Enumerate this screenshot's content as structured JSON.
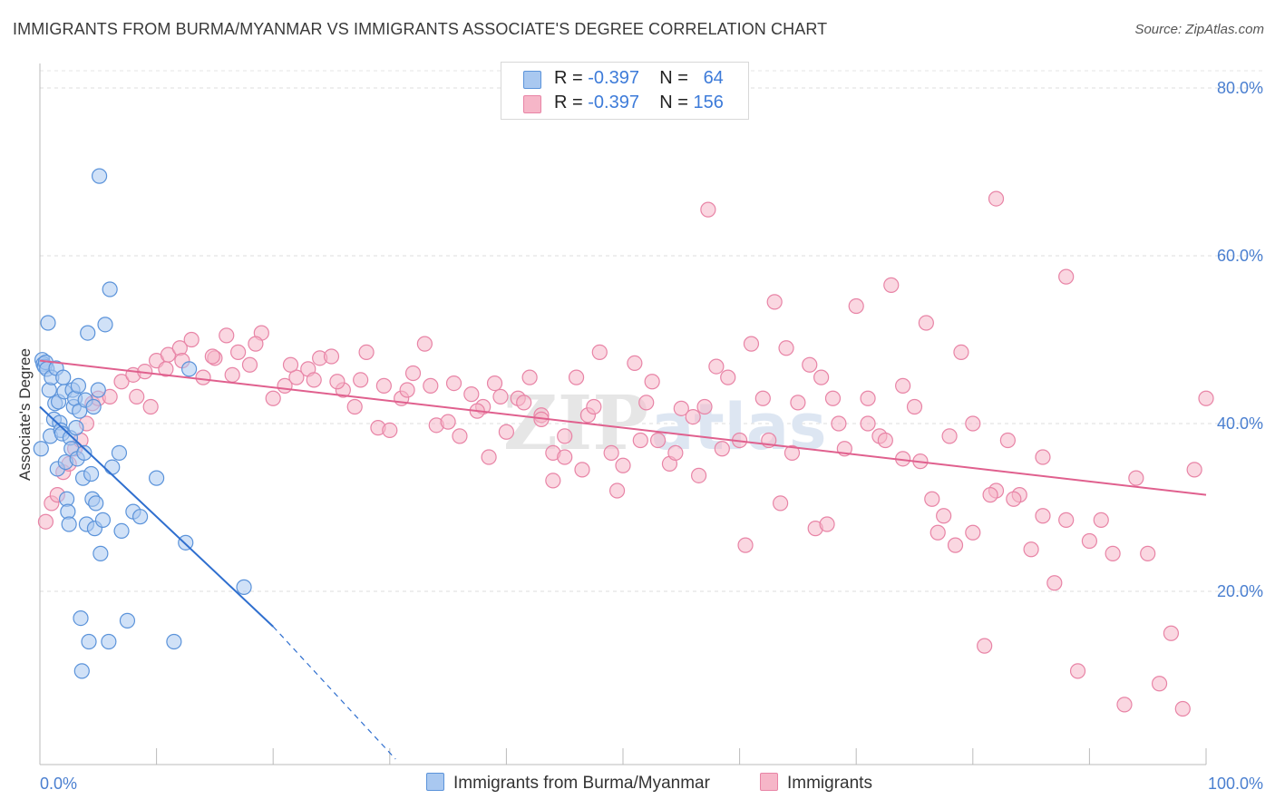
{
  "title": "IMMIGRANTS FROM BURMA/MYANMAR VS IMMIGRANTS ASSOCIATE'S DEGREE CORRELATION CHART",
  "source": "Source: ZipAtlas.com",
  "legend": {
    "r_label": "R =",
    "n_label": "N =",
    "rows": [
      {
        "r": "-0.397",
        "n": "64",
        "color": "#a9c8f0"
      },
      {
        "r": "-0.397",
        "n": "156",
        "color": "#f6b6c8"
      }
    ]
  },
  "bottom_legend": {
    "series1": "Immigrants from Burma/Myanmar",
    "series2": "Immigrants"
  },
  "colors": {
    "blue_fill": "#a9c8f0",
    "blue_stroke": "#5b93da",
    "blue_line": "#2f6fcf",
    "pink_fill": "#f6b6c8",
    "pink_stroke": "#e884a6",
    "pink_line": "#e0608e",
    "tick": "#4a7fd0"
  },
  "chart_data": {
    "type": "scatter",
    "title": "IMMIGRANTS FROM BURMA/MYANMAR VS IMMIGRANTS ASSOCIATE'S DEGREE CORRELATION CHART",
    "xlabel": "",
    "ylabel": "Associate's Degree",
    "xlim": [
      0,
      100
    ],
    "ylim": [
      0,
      82
    ],
    "x_ticks": [
      "0.0%",
      "100.0%"
    ],
    "y_ticks": [
      {
        "value": 20,
        "label": "20.0%"
      },
      {
        "value": 40,
        "label": "40.0%"
      },
      {
        "value": 60,
        "label": "60.0%"
      },
      {
        "value": 80,
        "label": "80.0%"
      }
    ],
    "grid": "horizontal dashed",
    "watermark": "ZIPatlas",
    "series": [
      {
        "name": "Immigrants from Burma/Myanmar",
        "color": "#a9c8f0",
        "trend": {
          "x1": 0.0,
          "y1": 42.0,
          "x2": 20.0,
          "y2": 15.8,
          "dashed_to_x": 30.5,
          "dashed_to_y": 0.0
        },
        "points": [
          [
            0.2,
            47.6
          ],
          [
            0.3,
            47.1
          ],
          [
            0.4,
            46.8
          ],
          [
            0.5,
            47.3
          ],
          [
            0.6,
            46.5
          ],
          [
            0.7,
            52.0
          ],
          [
            0.8,
            44.0
          ],
          [
            0.9,
            38.5
          ],
          [
            1.0,
            45.5
          ],
          [
            1.2,
            40.5
          ],
          [
            1.3,
            42.4
          ],
          [
            1.4,
            46.6
          ],
          [
            1.5,
            34.6
          ],
          [
            1.6,
            42.6
          ],
          [
            1.7,
            40.1
          ],
          [
            1.8,
            39.2
          ],
          [
            1.9,
            38.8
          ],
          [
            2.0,
            45.5
          ],
          [
            2.1,
            43.8
          ],
          [
            2.2,
            35.4
          ],
          [
            2.3,
            31.0
          ],
          [
            2.4,
            29.5
          ],
          [
            2.5,
            28.0
          ],
          [
            2.6,
            38.3
          ],
          [
            2.7,
            37.0
          ],
          [
            2.8,
            44.0
          ],
          [
            2.9,
            42.0
          ],
          [
            3.0,
            43.0
          ],
          [
            3.1,
            39.5
          ],
          [
            3.2,
            35.8
          ],
          [
            3.3,
            44.5
          ],
          [
            3.4,
            41.5
          ],
          [
            3.5,
            16.8
          ],
          [
            3.6,
            10.5
          ],
          [
            3.7,
            33.5
          ],
          [
            3.8,
            36.5
          ],
          [
            3.9,
            42.8
          ],
          [
            4.0,
            28.0
          ],
          [
            4.1,
            50.8
          ],
          [
            4.2,
            14.0
          ],
          [
            4.4,
            34.0
          ],
          [
            4.5,
            31.0
          ],
          [
            4.6,
            42.0
          ],
          [
            4.7,
            27.5
          ],
          [
            4.8,
            30.5
          ],
          [
            5.0,
            44.0
          ],
          [
            5.1,
            69.5
          ],
          [
            5.2,
            24.5
          ],
          [
            5.4,
            28.5
          ],
          [
            5.6,
            51.8
          ],
          [
            5.9,
            14.0
          ],
          [
            6.0,
            56.0
          ],
          [
            6.2,
            34.8
          ],
          [
            6.8,
            36.5
          ],
          [
            7.5,
            16.5
          ],
          [
            8.0,
            29.5
          ],
          [
            7.0,
            27.2
          ],
          [
            8.6,
            28.9
          ],
          [
            10.0,
            33.5
          ],
          [
            11.5,
            14.0
          ],
          [
            12.5,
            25.8
          ],
          [
            12.8,
            46.5
          ],
          [
            17.5,
            20.5
          ],
          [
            0.1,
            37.0
          ]
        ]
      },
      {
        "name": "Immigrants",
        "color": "#f6b6c8",
        "trend": {
          "x1": 0.0,
          "y1": 47.5,
          "x2": 100.0,
          "y2": 31.5
        },
        "points": [
          [
            0.5,
            28.3
          ],
          [
            1.0,
            30.5
          ],
          [
            1.5,
            31.5
          ],
          [
            2.0,
            34.2
          ],
          [
            2.5,
            35.2
          ],
          [
            3.0,
            37.0
          ],
          [
            3.5,
            38.0
          ],
          [
            4.0,
            40.0
          ],
          [
            4.5,
            42.4
          ],
          [
            5.0,
            43.0
          ],
          [
            6.0,
            43.2
          ],
          [
            7.0,
            45.0
          ],
          [
            8.0,
            45.8
          ],
          [
            9.0,
            46.2
          ],
          [
            10.0,
            47.5
          ],
          [
            11.0,
            48.2
          ],
          [
            12.0,
            49.0
          ],
          [
            13.0,
            50.0
          ],
          [
            14.0,
            45.5
          ],
          [
            15.0,
            47.8
          ],
          [
            16.0,
            50.5
          ],
          [
            17.0,
            48.5
          ],
          [
            18.0,
            47.0
          ],
          [
            19.0,
            50.8
          ],
          [
            20.0,
            43.0
          ],
          [
            21.0,
            44.5
          ],
          [
            22.0,
            45.5
          ],
          [
            23.0,
            46.5
          ],
          [
            24.0,
            47.8
          ],
          [
            25.0,
            48.0
          ],
          [
            26.0,
            44.0
          ],
          [
            27.0,
            42.0
          ],
          [
            28.0,
            48.5
          ],
          [
            29.0,
            39.5
          ],
          [
            30.0,
            39.2
          ],
          [
            31.0,
            43.0
          ],
          [
            32.0,
            46.0
          ],
          [
            33.0,
            49.5
          ],
          [
            34.0,
            39.8
          ],
          [
            35.0,
            40.2
          ],
          [
            36.0,
            38.5
          ],
          [
            37.0,
            43.5
          ],
          [
            38.0,
            42.0
          ],
          [
            39.0,
            44.8
          ],
          [
            40.0,
            39.0
          ],
          [
            41.0,
            43.0
          ],
          [
            42.0,
            45.5
          ],
          [
            43.0,
            41.0
          ],
          [
            44.0,
            36.5
          ],
          [
            45.0,
            38.5
          ],
          [
            46.0,
            45.5
          ],
          [
            47.0,
            41.0
          ],
          [
            48.0,
            48.5
          ],
          [
            49.0,
            36.5
          ],
          [
            50.0,
            35.0
          ],
          [
            51.0,
            47.2
          ],
          [
            52.0,
            42.5
          ],
          [
            53.0,
            38.0
          ],
          [
            54.0,
            35.2
          ],
          [
            55.0,
            41.8
          ],
          [
            56.0,
            40.8
          ],
          [
            57.0,
            42.0
          ],
          [
            58.0,
            46.8
          ],
          [
            59.0,
            45.5
          ],
          [
            60.0,
            38.0
          ],
          [
            61.0,
            49.5
          ],
          [
            62.0,
            43.0
          ],
          [
            63.0,
            54.5
          ],
          [
            64.0,
            49.0
          ],
          [
            65.0,
            42.5
          ],
          [
            66.0,
            47.0
          ],
          [
            67.0,
            45.5
          ],
          [
            68.0,
            43.0
          ],
          [
            69.0,
            37.0
          ],
          [
            70.0,
            54.0
          ],
          [
            71.0,
            43.0
          ],
          [
            72.0,
            38.5
          ],
          [
            73.0,
            56.5
          ],
          [
            74.0,
            44.5
          ],
          [
            75.0,
            42.0
          ],
          [
            76.0,
            52.0
          ],
          [
            77.0,
            27.0
          ],
          [
            78.0,
            38.5
          ],
          [
            79.0,
            48.5
          ],
          [
            80.0,
            40.0
          ],
          [
            81.0,
            13.5
          ],
          [
            82.0,
            32.0
          ],
          [
            83.0,
            38.0
          ],
          [
            84.0,
            31.5
          ],
          [
            85.0,
            25.0
          ],
          [
            86.0,
            36.0
          ],
          [
            87.0,
            21.0
          ],
          [
            88.0,
            57.5
          ],
          [
            89.0,
            10.5
          ],
          [
            90.0,
            26.0
          ],
          [
            91.0,
            28.5
          ],
          [
            92.0,
            24.5
          ],
          [
            93.0,
            6.5
          ],
          [
            94.0,
            33.5
          ],
          [
            95.0,
            24.5
          ],
          [
            96.0,
            9.0
          ],
          [
            97.0,
            15.0
          ],
          [
            98.0,
            6.0
          ],
          [
            99.0,
            34.5
          ],
          [
            100.0,
            43.0
          ],
          [
            57.3,
            65.5
          ],
          [
            82.0,
            66.8
          ],
          [
            38.5,
            36.0
          ],
          [
            44.0,
            33.2
          ],
          [
            46.5,
            34.5
          ],
          [
            8.3,
            43.2
          ],
          [
            9.5,
            42.0
          ],
          [
            10.8,
            46.5
          ],
          [
            12.2,
            47.5
          ],
          [
            14.8,
            48.0
          ],
          [
            16.5,
            45.8
          ],
          [
            18.5,
            49.5
          ],
          [
            21.5,
            47.0
          ],
          [
            23.5,
            45.2
          ],
          [
            25.5,
            45.0
          ],
          [
            27.5,
            45.2
          ],
          [
            29.5,
            44.5
          ],
          [
            31.5,
            44.0
          ],
          [
            33.5,
            44.5
          ],
          [
            35.5,
            44.8
          ],
          [
            37.5,
            41.5
          ],
          [
            39.5,
            43.2
          ],
          [
            41.5,
            42.5
          ],
          [
            43.0,
            40.5
          ],
          [
            45.0,
            36.0
          ],
          [
            47.5,
            42.0
          ],
          [
            49.5,
            32.0
          ],
          [
            51.5,
            38.0
          ],
          [
            52.5,
            45.0
          ],
          [
            54.5,
            36.5
          ],
          [
            56.5,
            33.8
          ],
          [
            58.5,
            37.0
          ],
          [
            60.5,
            25.5
          ],
          [
            62.5,
            38.0
          ],
          [
            63.5,
            30.5
          ],
          [
            64.5,
            36.5
          ],
          [
            66.5,
            27.5
          ],
          [
            67.5,
            28.0
          ],
          [
            68.5,
            40.0
          ],
          [
            71.0,
            40.0
          ],
          [
            72.5,
            38.0
          ],
          [
            74.0,
            35.8
          ],
          [
            75.5,
            35.5
          ],
          [
            76.5,
            31.0
          ],
          [
            77.5,
            29.0
          ],
          [
            78.5,
            25.5
          ],
          [
            80.0,
            27.0
          ],
          [
            81.5,
            31.5
          ],
          [
            83.5,
            31.0
          ],
          [
            86.0,
            29.0
          ],
          [
            88.0,
            28.5
          ]
        ]
      }
    ]
  }
}
